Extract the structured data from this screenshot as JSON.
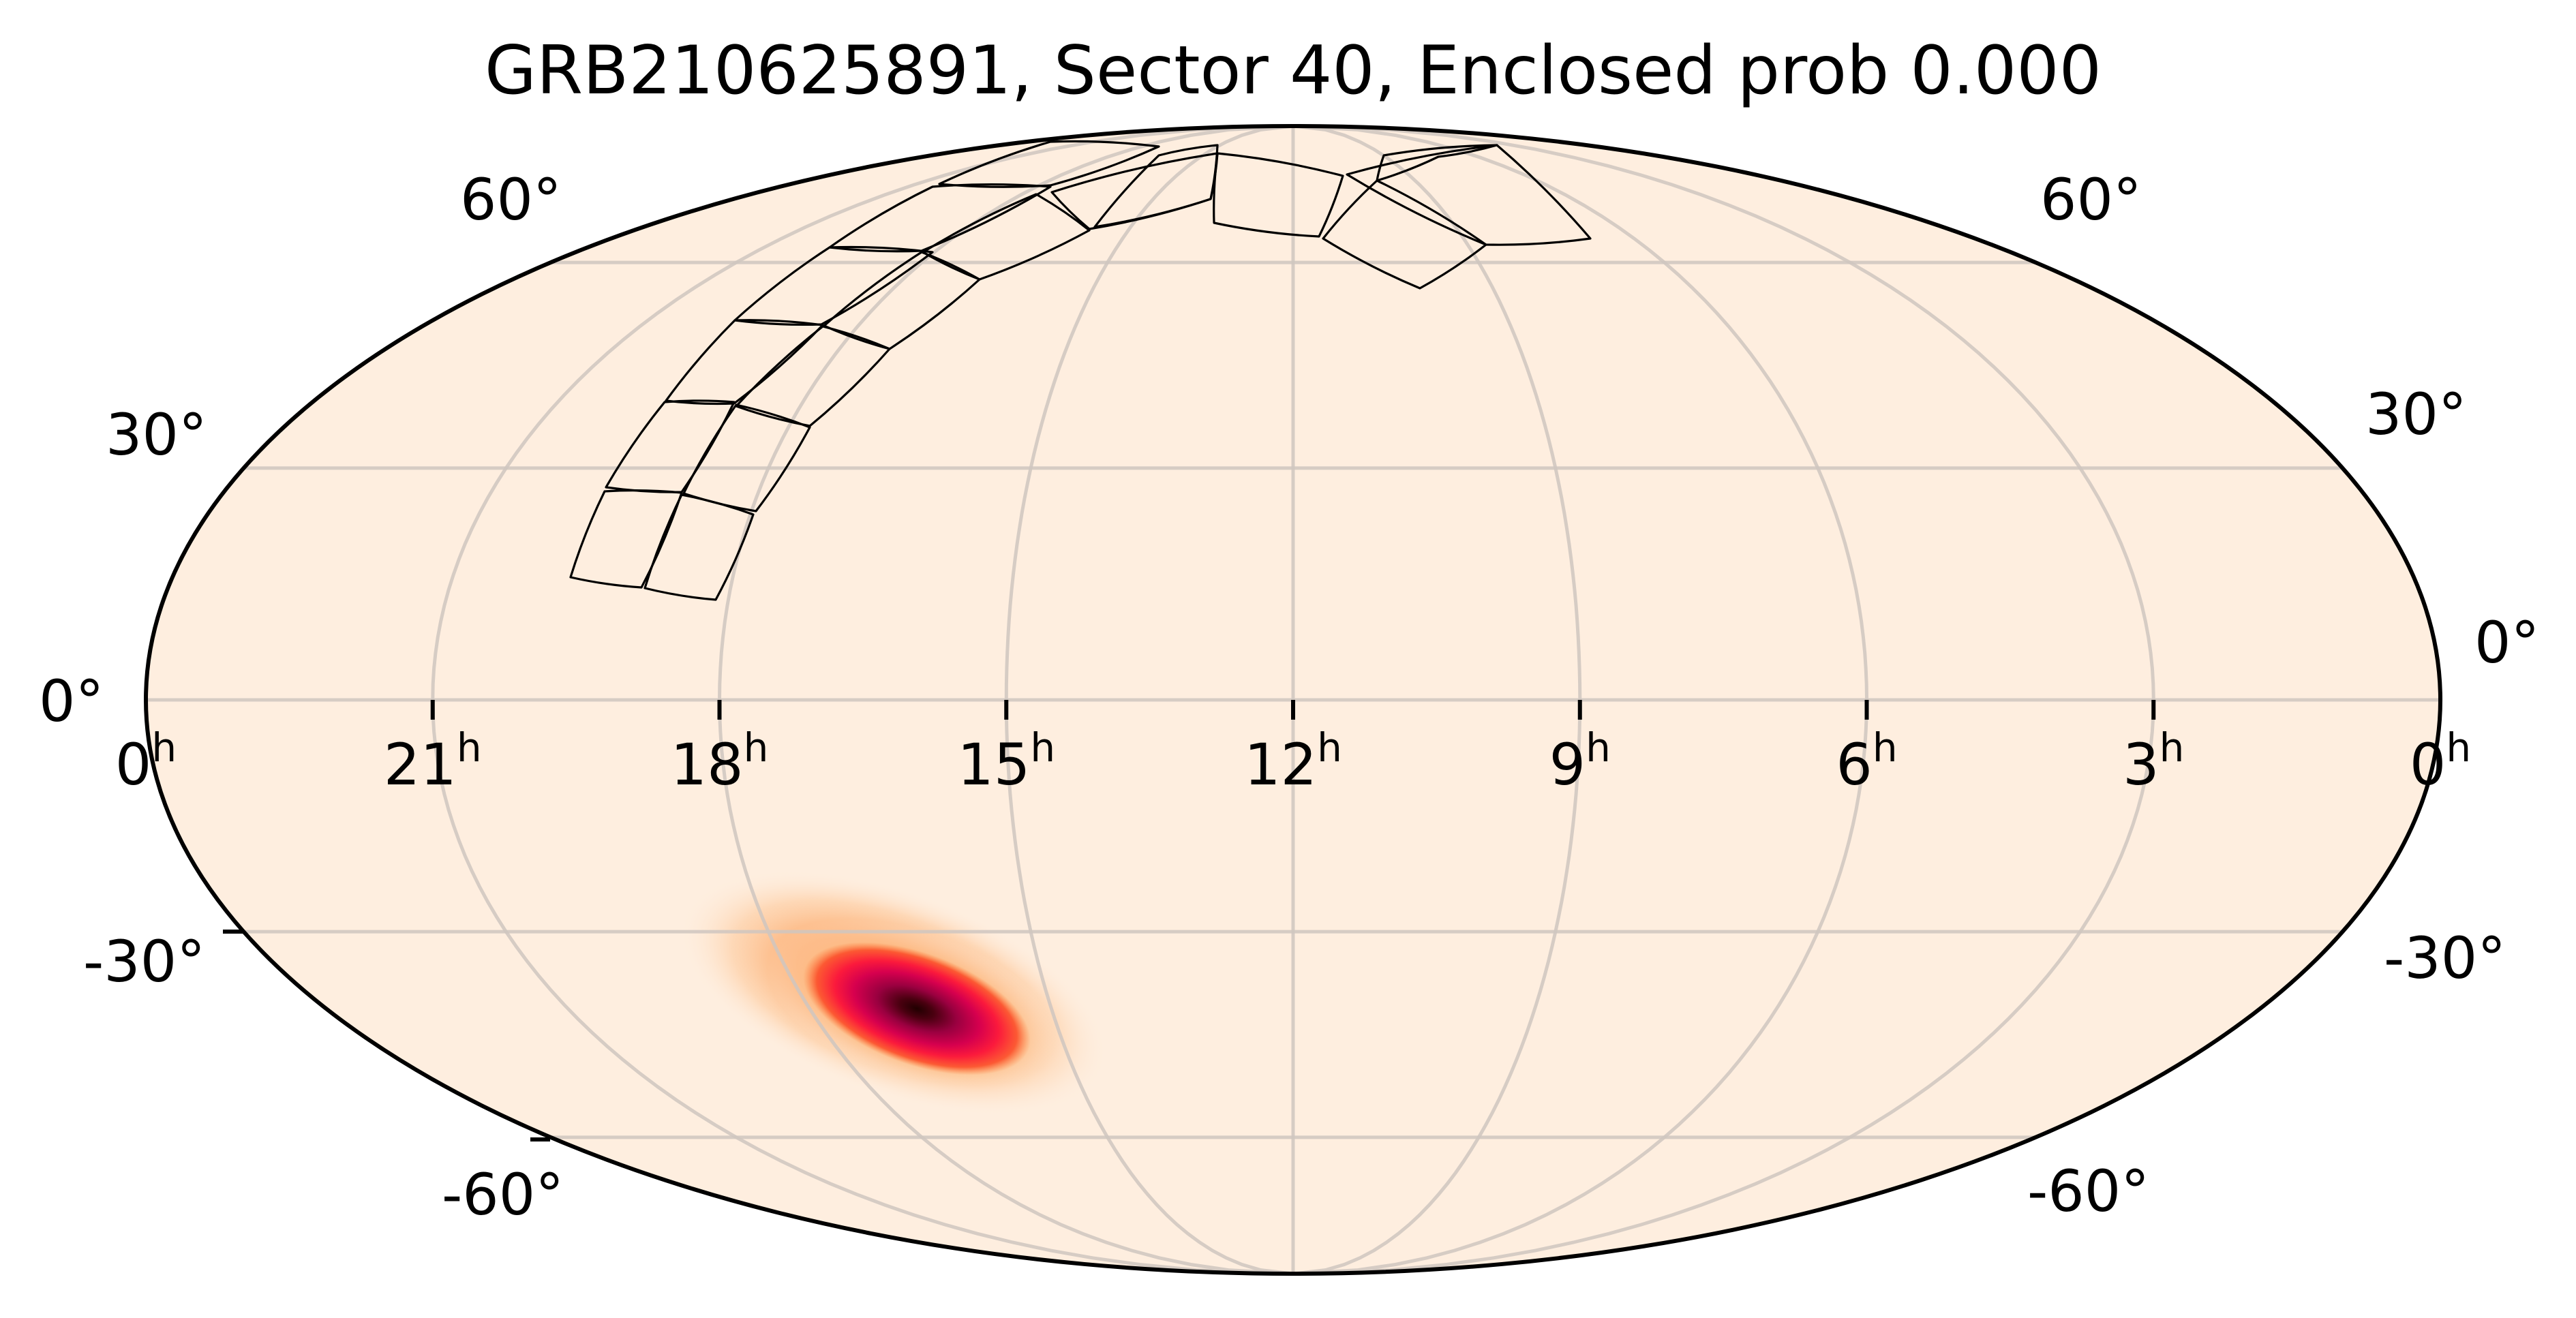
{
  "chart_data": {
    "type": "heatmap",
    "projection": "mollweide",
    "title": "GRB210625891, Sector 40, Enclosed prob 0.000",
    "xlabel": "",
    "ylabel": "",
    "grid": true,
    "background_color": "#FEEEDF",
    "grid_color": "#D3CAC3",
    "x_ticks": [
      {
        "label": "0",
        "sup": "h",
        "ra_hours": 24
      },
      {
        "label": "21",
        "sup": "h",
        "ra_hours": 21
      },
      {
        "label": "18",
        "sup": "h",
        "ra_hours": 18
      },
      {
        "label": "15",
        "sup": "h",
        "ra_hours": 15
      },
      {
        "label": "12",
        "sup": "h",
        "ra_hours": 12
      },
      {
        "label": "9",
        "sup": "h",
        "ra_hours": 9
      },
      {
        "label": "6",
        "sup": "h",
        "ra_hours": 6
      },
      {
        "label": "3",
        "sup": "h",
        "ra_hours": 3
      },
      {
        "label": "0",
        "sup": "h",
        "ra_hours": 0
      }
    ],
    "y_ticks_left": [
      "60°",
      "30°",
      "0°",
      "-30°",
      "-60°"
    ],
    "y_ticks_right": [
      "60°",
      "30°",
      "0°",
      "-30°",
      "-60°"
    ],
    "y_tick_values": [
      60,
      30,
      0,
      -30,
      -60
    ],
    "probability_blob": {
      "description": "GRB localization probability density",
      "center_ra_hours": 16.3,
      "center_dec_deg": -37,
      "colormap_stops": [
        "#FEEEDF",
        "#FDB27A",
        "#FB6A2C",
        "#F5113F",
        "#C9005A",
        "#6E0024",
        "#1A0000"
      ]
    },
    "tess_sector": 40,
    "enclosed_probability": 0.0,
    "camera_ccd_tiles": [
      [
        [
          837,
          847
        ],
        [
          941,
          862
        ],
        [
          1000,
          723
        ],
        [
          887,
          721
        ]
      ],
      [
        [
          946,
          863
        ],
        [
          1050,
          880
        ],
        [
          1105,
          755
        ],
        [
          1000,
          726
        ]
      ],
      [
        [
          889,
          715
        ],
        [
          1000,
          722
        ],
        [
          1077,
          590
        ],
        [
          975,
          590
        ]
      ],
      [
        [
          1003,
          724
        ],
        [
          1109,
          750
        ],
        [
          1188,
          627
        ],
        [
          1080,
          594
        ]
      ],
      [
        [
          977,
          588
        ],
        [
          1077,
          592
        ],
        [
          1207,
          477
        ],
        [
          1078,
          470
        ]
      ],
      [
        [
          1080,
          596
        ],
        [
          1188,
          625
        ],
        [
          1305,
          512
        ],
        [
          1207,
          479
        ]
      ],
      [
        [
          1078,
          470
        ],
        [
          1205,
          476
        ],
        [
          1368,
          370
        ],
        [
          1217,
          363
        ]
      ],
      [
        [
          1209,
          478
        ],
        [
          1305,
          512
        ],
        [
          1437,
          410
        ],
        [
          1352,
          370
        ]
      ],
      [
        [
          1217,
          363
        ],
        [
          1352,
          368
        ],
        [
          1541,
          274
        ],
        [
          1368,
          274
        ]
      ],
      [
        [
          1354,
          370
        ],
        [
          1437,
          410
        ],
        [
          1598,
          338
        ],
        [
          1520,
          285
        ]
      ],
      [
        [
          1378,
          270
        ],
        [
          1541,
          272
        ],
        [
          1700,
          215
        ],
        [
          1541,
          208
        ]
      ],
      [
        [
          1543,
          282
        ],
        [
          1598,
          336
        ],
        [
          1776,
          292
        ],
        [
          1786,
          225
        ]
      ],
      [
        [
          1606,
          333
        ],
        [
          1776,
          292
        ],
        [
          1786,
          213
        ],
        [
          1700,
          228
        ]
      ],
      [
        [
          1781,
          327
        ],
        [
          1935,
          347
        ],
        [
          1970,
          258
        ],
        [
          1786,
          225
        ]
      ],
      [
        [
          1941,
          350
        ],
        [
          2083,
          423
        ],
        [
          2180,
          359
        ],
        [
          2020,
          265
        ]
      ],
      [
        [
          1976,
          256
        ],
        [
          2180,
          359
        ],
        [
          2333,
          350
        ],
        [
          2196,
          213
        ]
      ],
      [
        [
          2020,
          265
        ],
        [
          2110,
          230
        ],
        [
          2196,
          213
        ],
        [
          2030,
          228
        ]
      ]
    ]
  }
}
